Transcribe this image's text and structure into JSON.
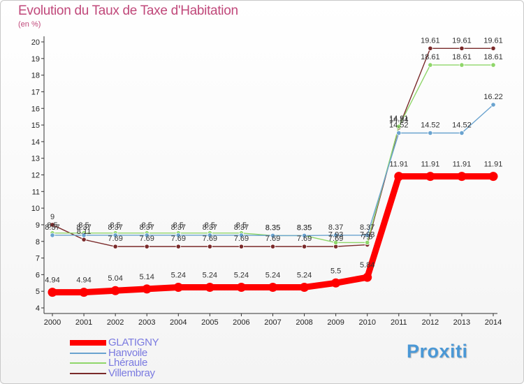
{
  "chart_data": {
    "type": "line",
    "title": "Evolution du Taux de Taxe d'Habitation",
    "unit_label": "(en %)",
    "x": [
      "2000",
      "2001",
      "2002",
      "2003",
      "2004",
      "2005",
      "2006",
      "2007",
      "2008",
      "2009",
      "2010",
      "2011",
      "2012",
      "2013",
      "2014"
    ],
    "y_ticks": [
      4,
      5,
      6,
      7,
      8,
      9,
      10,
      11,
      12,
      13,
      14,
      15,
      16,
      17,
      18,
      19,
      20
    ],
    "ylim": [
      4,
      20
    ],
    "grid": false,
    "legend_position": "bottom-left",
    "series": [
      {
        "name": "GLATIGNY",
        "color": "#ff0000",
        "values": [
          4.94,
          4.94,
          5.04,
          5.14,
          5.24,
          5.24,
          5.24,
          5.24,
          5.24,
          5.5,
          5.84,
          11.91,
          11.91,
          11.91,
          11.91
        ],
        "labels": [
          "4.94",
          "4.94",
          "5.04",
          "5.14",
          "5.24",
          "5.24",
          "5.24",
          "5.24",
          "5.24",
          "5.5",
          "5.84",
          "11.91",
          "11.91",
          "11.91",
          "11.91"
        ]
      },
      {
        "name": "Hanvoile",
        "color": "#6aa3cf",
        "values": [
          8.37,
          8.37,
          8.37,
          8.37,
          8.37,
          8.37,
          8.37,
          8.35,
          8.35,
          8.37,
          8.37,
          14.52,
          14.52,
          14.52,
          16.22
        ],
        "labels": [
          "8.37",
          "8.37",
          "8.37",
          "8.37",
          "8.37",
          "8.37",
          "8.37",
          "8.35",
          "8.35",
          "8.37",
          "8.37",
          "14.52",
          "14.52",
          "14.52",
          "16.22"
        ]
      },
      {
        "name": "Lhéraule",
        "color": "#8fd66a",
        "values": [
          8.5,
          8.5,
          8.5,
          8.5,
          8.5,
          8.5,
          8.5,
          8.35,
          8.35,
          7.93,
          7.93,
          14.91,
          18.61,
          18.61,
          18.61
        ],
        "labels": [
          "8.5",
          "8.5",
          "8.5",
          "8.5",
          "8.5",
          "8.5",
          "8.5",
          "8.35",
          "8.35",
          "7.93",
          "7.93",
          "14.91",
          "18.61",
          "18.61",
          "18.61"
        ]
      },
      {
        "name": "Villembray",
        "color": "#7a2a2a",
        "values": [
          9,
          8.11,
          7.69,
          7.69,
          7.69,
          7.69,
          7.69,
          7.69,
          7.69,
          7.69,
          7.8,
          14.84,
          19.61,
          19.61,
          19.61
        ],
        "labels": [
          "9",
          "8.11",
          "7.69",
          "7.69",
          "7.69",
          "7.69",
          "7.69",
          "7.69",
          "7.69",
          "7.69",
          "7.8",
          "14.84",
          "19.61",
          "19.61",
          "19.61"
        ]
      }
    ]
  },
  "legend": {
    "items": [
      "GLATIGNY",
      "Hanvoile",
      "Lhéraule",
      "Villembray"
    ]
  },
  "logo": {
    "text": "Proxiti"
  }
}
